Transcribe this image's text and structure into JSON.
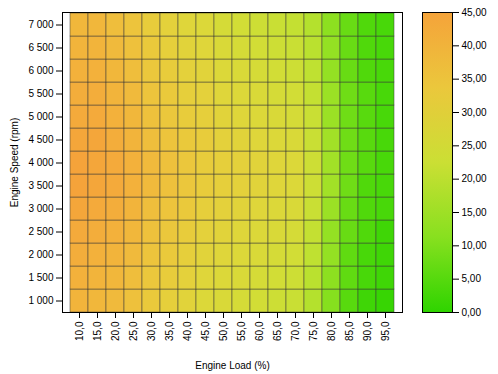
{
  "chart_data": {
    "type": "heatmap",
    "x_label": "Engine Load (%)",
    "y_label": "Engine Speed (rpm)",
    "x_categories": [
      "10,0",
      "15,0",
      "20,0",
      "25,0",
      "30,0",
      "35,0",
      "40,0",
      "45,0",
      "50,0",
      "55,0",
      "60,0",
      "65,0",
      "70,0",
      "75,0",
      "80,0",
      "85,0",
      "90,0",
      "95,0"
    ],
    "y_categories": [
      "1 000",
      "1 500",
      "2 000",
      "2 500",
      "3 000",
      "3 500",
      "4 000",
      "4 500",
      "5 000",
      "5 500",
      "6 000",
      "6 500",
      "7 000"
    ],
    "cells": [
      [
        40,
        39,
        38,
        36,
        33,
        31,
        29,
        27,
        26,
        25,
        24,
        23,
        22,
        18,
        11,
        5,
        2,
        1
      ],
      [
        41,
        40,
        39,
        37,
        34,
        32,
        30,
        28,
        27,
        26,
        25,
        24,
        23,
        19,
        12,
        6,
        3,
        2
      ],
      [
        42,
        41,
        40,
        38,
        35,
        33,
        31,
        29,
        28,
        27,
        26,
        25,
        24,
        20,
        13,
        6,
        3,
        2
      ],
      [
        43,
        42,
        41,
        39,
        36,
        34,
        32,
        30,
        29,
        28,
        27,
        26,
        25,
        21,
        13,
        7,
        4,
        2
      ],
      [
        44,
        43,
        42,
        40,
        37,
        35,
        33,
        31,
        30,
        29,
        28,
        27,
        26,
        22,
        14,
        7,
        4,
        3
      ],
      [
        45,
        44,
        43,
        41,
        38,
        36,
        34,
        32,
        31,
        30,
        29,
        28,
        27,
        23,
        15,
        8,
        4,
        3
      ],
      [
        45,
        44,
        43,
        41,
        38,
        36,
        34,
        32,
        31,
        30,
        29,
        28,
        27,
        23,
        15,
        8,
        5,
        3
      ],
      [
        44,
        44,
        42,
        40,
        37,
        35,
        33,
        32,
        30,
        29,
        28,
        27,
        26,
        22,
        15,
        8,
        5,
        3
      ],
      [
        43,
        43,
        41,
        39,
        36,
        34,
        32,
        31,
        29,
        28,
        27,
        26,
        25,
        22,
        14,
        8,
        5,
        3
      ],
      [
        42,
        42,
        40,
        38,
        35,
        33,
        31,
        30,
        28,
        27,
        26,
        25,
        24,
        21,
        14,
        8,
        5,
        3
      ],
      [
        41,
        41,
        39,
        37,
        34,
        32,
        30,
        29,
        27,
        26,
        25,
        24,
        23,
        20,
        13,
        7,
        4,
        3
      ],
      [
        40,
        40,
        38,
        36,
        33,
        31,
        29,
        28,
        26,
        25,
        24,
        23,
        22,
        19,
        13,
        7,
        4,
        3
      ],
      [
        39,
        39,
        37,
        35,
        32,
        30,
        28,
        27,
        25,
        24,
        23,
        22,
        21,
        18,
        12,
        7,
        4,
        3
      ]
    ],
    "zlim": [
      0,
      45
    ],
    "zticks": [
      {
        "value": 0,
        "label": "0,00"
      },
      {
        "value": 5,
        "label": "5,00"
      },
      {
        "value": 10,
        "label": "10,00"
      },
      {
        "value": 15,
        "label": "15,00"
      },
      {
        "value": 20,
        "label": "20,00"
      },
      {
        "value": 25,
        "label": "25,00"
      },
      {
        "value": 30,
        "label": "30,00"
      },
      {
        "value": 35,
        "label": "35,00"
      },
      {
        "value": 40,
        "label": "40,00"
      },
      {
        "value": 45,
        "label": "45,00"
      }
    ]
  }
}
